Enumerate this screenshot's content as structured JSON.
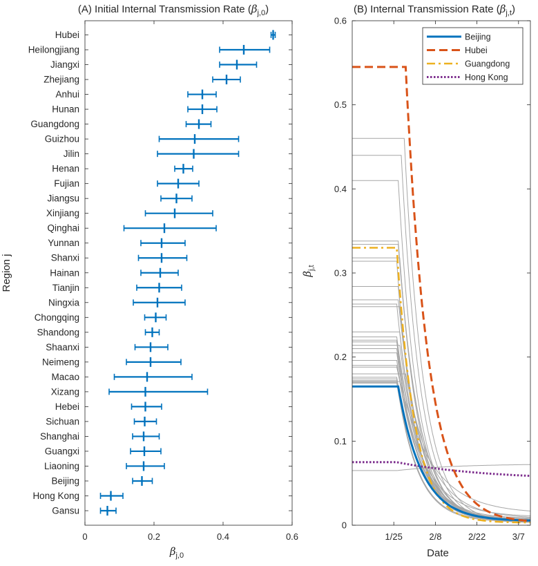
{
  "colors": {
    "beijing": "#0072BD",
    "hubei": "#D95319",
    "guangdong": "#EDB120",
    "hongkong": "#7E2F8E",
    "other": "#a6a6a6",
    "axis": "#262626"
  },
  "chart_data": [
    {
      "type": "errorbar",
      "title_main": "(A) Initial Internal Transmission Rate (",
      "title_sym": "β",
      "title_sub": "j,0",
      "title_close": ")",
      "xlabel_sym": "β",
      "xlabel_sub": "j,0",
      "ylabel": "Region j",
      "xlim": [
        0,
        0.6
      ],
      "xticks": [
        "0",
        "0.2",
        "0.4",
        "0.6"
      ],
      "regions": [
        {
          "name": "Hubei",
          "value": 0.545,
          "low": 0.539,
          "high": 0.551
        },
        {
          "name": "Heilongjiang",
          "value": 0.46,
          "low": 0.39,
          "high": 0.535
        },
        {
          "name": "Jiangxi",
          "value": 0.44,
          "low": 0.39,
          "high": 0.497
        },
        {
          "name": "Zhejiang",
          "value": 0.41,
          "low": 0.37,
          "high": 0.45
        },
        {
          "name": "Anhui",
          "value": 0.34,
          "low": 0.298,
          "high": 0.38
        },
        {
          "name": "Hunan",
          "value": 0.34,
          "low": 0.298,
          "high": 0.382
        },
        {
          "name": "Guangdong",
          "value": 0.33,
          "low": 0.293,
          "high": 0.365
        },
        {
          "name": "Guizhou",
          "value": 0.318,
          "low": 0.215,
          "high": 0.445
        },
        {
          "name": "Jilin",
          "value": 0.315,
          "low": 0.21,
          "high": 0.445
        },
        {
          "name": "Henan",
          "value": 0.285,
          "low": 0.26,
          "high": 0.312
        },
        {
          "name": "Fujian",
          "value": 0.27,
          "low": 0.21,
          "high": 0.33
        },
        {
          "name": "Jiangsu",
          "value": 0.265,
          "low": 0.22,
          "high": 0.31
        },
        {
          "name": "Xinjiang",
          "value": 0.26,
          "low": 0.175,
          "high": 0.37
        },
        {
          "name": "Qinghai",
          "value": 0.23,
          "low": 0.113,
          "high": 0.38
        },
        {
          "name": "Yunnan",
          "value": 0.222,
          "low": 0.162,
          "high": 0.29
        },
        {
          "name": "Shanxi",
          "value": 0.222,
          "low": 0.155,
          "high": 0.295
        },
        {
          "name": "Hainan",
          "value": 0.218,
          "low": 0.162,
          "high": 0.27
        },
        {
          "name": "Tianjin",
          "value": 0.215,
          "low": 0.15,
          "high": 0.28
        },
        {
          "name": "Ningxia",
          "value": 0.21,
          "low": 0.14,
          "high": 0.29
        },
        {
          "name": "Chongqing",
          "value": 0.205,
          "low": 0.173,
          "high": 0.235
        },
        {
          "name": "Shandong",
          "value": 0.195,
          "low": 0.175,
          "high": 0.215
        },
        {
          "name": "Shaanxi",
          "value": 0.19,
          "low": 0.145,
          "high": 0.24
        },
        {
          "name": "Neimeng",
          "value": 0.19,
          "low": 0.12,
          "high": 0.278
        },
        {
          "name": "Macao",
          "value": 0.18,
          "low": 0.085,
          "high": 0.31
        },
        {
          "name": "Xizang",
          "value": 0.175,
          "low": 0.07,
          "high": 0.355
        },
        {
          "name": "Hebei",
          "value": 0.175,
          "low": 0.135,
          "high": 0.222
        },
        {
          "name": "Sichuan",
          "value": 0.173,
          "low": 0.143,
          "high": 0.207
        },
        {
          "name": "Shanghai",
          "value": 0.17,
          "low": 0.138,
          "high": 0.215
        },
        {
          "name": "Guangxi",
          "value": 0.172,
          "low": 0.132,
          "high": 0.22
        },
        {
          "name": "Liaoning",
          "value": 0.17,
          "low": 0.12,
          "high": 0.23
        },
        {
          "name": "Beijing",
          "value": 0.165,
          "low": 0.138,
          "high": 0.195
        },
        {
          "name": "Hong Kong",
          "value": 0.075,
          "low": 0.045,
          "high": 0.11
        },
        {
          "name": "Gansu",
          "value": 0.065,
          "low": 0.045,
          "high": 0.09
        }
      ]
    },
    {
      "type": "line",
      "title_main": "(B) Internal Transmission Rate (",
      "title_sym": "β",
      "title_sub": "j,t",
      "title_close": ")",
      "xlabel": "Date",
      "ylabel_sym": "β",
      "ylabel_sub": "j,t",
      "xlim": [
        0,
        60
      ],
      "ylim": [
        0,
        0.6
      ],
      "xticks": [
        {
          "label": "1/25",
          "day": 14
        },
        {
          "label": "2/8",
          "day": 28
        },
        {
          "label": "2/22",
          "day": 42
        },
        {
          "label": "3/7",
          "day": 56
        }
      ],
      "yticks": [
        "0",
        "0.1",
        "0.2",
        "0.3",
        "0.4",
        "0.5",
        "0.6"
      ],
      "legend": [
        "Beijing",
        "Hubei",
        "Guangdong",
        "Hong Kong"
      ],
      "highlighted": [
        {
          "name": "Beijing",
          "start": 0.165,
          "t0": 15.5,
          "floor": 0.005,
          "tau": 8,
          "style": "solid"
        },
        {
          "name": "Hubei",
          "start": 0.545,
          "t0": 18,
          "floor": 0.003,
          "tau": 7.5,
          "style": "dashed"
        },
        {
          "name": "Guangdong",
          "start": 0.33,
          "t0": 15,
          "floor": 0.003,
          "tau": 6,
          "style": "dashdot"
        },
        {
          "name": "Hong Kong",
          "start": 0.075,
          "t0": 15,
          "floor": 0.054,
          "tau": 30,
          "style": "dotted"
        }
      ],
      "others": [
        {
          "start": 0.46,
          "t0": 17.5,
          "floor": 0.004,
          "tau": 6.5
        },
        {
          "start": 0.44,
          "t0": 16.5,
          "floor": 0.003,
          "tau": 6.5
        },
        {
          "start": 0.41,
          "t0": 15.5,
          "floor": 0.003,
          "tau": 6.5
        },
        {
          "start": 0.338,
          "t0": 15.5,
          "floor": 0.004,
          "tau": 7
        },
        {
          "start": 0.334,
          "t0": 15.5,
          "floor": 0.004,
          "tau": 7
        },
        {
          "start": 0.318,
          "t0": 16,
          "floor": 0.004,
          "tau": 6.5
        },
        {
          "start": 0.314,
          "t0": 15,
          "floor": 0.006,
          "tau": 6
        },
        {
          "start": 0.284,
          "t0": 15.5,
          "floor": 0.004,
          "tau": 7
        },
        {
          "start": 0.268,
          "t0": 15.5,
          "floor": 0.005,
          "tau": 7.5
        },
        {
          "start": 0.263,
          "t0": 15,
          "floor": 0.004,
          "tau": 7
        },
        {
          "start": 0.26,
          "t0": 16,
          "floor": 0.004,
          "tau": 7
        },
        {
          "start": 0.23,
          "t0": 16,
          "floor": 0.006,
          "tau": 7
        },
        {
          "start": 0.224,
          "t0": 15,
          "floor": 0.005,
          "tau": 8
        },
        {
          "start": 0.22,
          "t0": 15,
          "floor": 0.006,
          "tau": 8
        },
        {
          "start": 0.218,
          "t0": 15,
          "floor": 0.005,
          "tau": 7
        },
        {
          "start": 0.214,
          "t0": 16,
          "floor": 0.006,
          "tau": 7.5
        },
        {
          "start": 0.21,
          "t0": 15,
          "floor": 0.005,
          "tau": 7.5
        },
        {
          "start": 0.205,
          "t0": 15,
          "floor": 0.008,
          "tau": 8
        },
        {
          "start": 0.196,
          "t0": 15,
          "floor": 0.007,
          "tau": 8
        },
        {
          "start": 0.19,
          "t0": 15,
          "floor": 0.01,
          "tau": 9
        },
        {
          "start": 0.188,
          "t0": 15,
          "floor": 0.014,
          "tau": 11
        },
        {
          "start": 0.18,
          "t0": 18,
          "floor": 0.008,
          "tau": 9
        },
        {
          "start": 0.176,
          "t0": 15,
          "floor": 0.006,
          "tau": 8
        },
        {
          "start": 0.174,
          "t0": 15,
          "floor": 0.005,
          "tau": 7
        },
        {
          "start": 0.172,
          "t0": 15,
          "floor": 0.005,
          "tau": 7
        },
        {
          "start": 0.17,
          "t0": 15,
          "floor": 0.004,
          "tau": 7
        },
        {
          "start": 0.171,
          "t0": 16,
          "floor": 0.006,
          "tau": 8
        },
        {
          "start": 0.169,
          "t0": 15,
          "floor": 0.006,
          "tau": 8.5
        },
        {
          "start": 0.065,
          "t0": 15,
          "floor": 0.073,
          "tau": 20,
          "rising": true
        }
      ]
    }
  ]
}
